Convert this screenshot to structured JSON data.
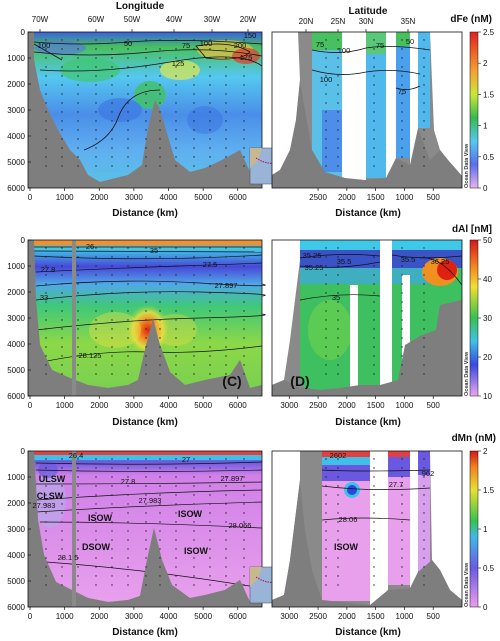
{
  "chart_data": [
    {
      "type": "heatmap",
      "row": "top",
      "colorbar_title": "dFe (nM)",
      "colorbar_ticks": [
        "0",
        "0.5",
        "1",
        "1.5",
        "2",
        "2.5"
      ],
      "colorbar_range": [
        0,
        2.5
      ],
      "left_panel": {
        "x_ticks": [
          "0",
          "1000",
          "2000",
          "3000",
          "4000",
          "5000",
          "6000"
        ],
        "y_ticks": [
          "0",
          "1000",
          "2000",
          "3000",
          "4000",
          "5000",
          "6000"
        ],
        "xlabel": "Distance (km)",
        "top_axis_title": "Longitude",
        "top_ticks": [
          "70W",
          "60W",
          "50W",
          "40W",
          "30W",
          "20W"
        ],
        "contour_labels": [
          "50",
          "75",
          "100",
          "200",
          "175",
          "125",
          "100",
          "150"
        ]
      },
      "right_panel": {
        "x_ticks": [
          "2500",
          "2000",
          "1500",
          "1000",
          "500"
        ],
        "xlabel": "Distance (km)",
        "top_axis_title": "Latitude",
        "top_ticks": [
          "20N",
          "25N",
          "30N",
          "35N"
        ],
        "contour_labels": [
          "75",
          "100",
          "75",
          "50",
          "100",
          "75"
        ]
      },
      "watermark": "Ocean Data View"
    },
    {
      "type": "heatmap",
      "row": "middle",
      "colorbar_title": "dAl [nM]",
      "colorbar_ticks": [
        "10",
        "20",
        "30",
        "40",
        "50"
      ],
      "colorbar_range": [
        10,
        50
      ],
      "left_panel": {
        "x_ticks": [
          "0",
          "1000",
          "2000",
          "3000",
          "4000",
          "5000",
          "6000"
        ],
        "y_ticks": [
          "0",
          "1000",
          "2000",
          "3000",
          "4000",
          "5000",
          "6000"
        ],
        "xlabel": "Distance (km)",
        "panel_letter": "(C)",
        "contour_labels": [
          "26",
          "27.5",
          "27.8",
          "27.897",
          "28.125",
          "35",
          "33"
        ]
      },
      "right_panel": {
        "x_ticks": [
          "3000",
          "2500",
          "2000",
          "1500",
          "1000",
          "500"
        ],
        "xlabel": "Distance (km)",
        "panel_letter": "(D)",
        "contour_labels": [
          "35.25",
          "35.5",
          "35.25",
          "36.25",
          "35",
          "35.5"
        ]
      },
      "watermark": "Ocean Data View"
    },
    {
      "type": "heatmap",
      "row": "bottom",
      "colorbar_title": "dMn (nM)",
      "colorbar_ticks": [
        "0",
        "0.5",
        "1",
        "1.5",
        "2"
      ],
      "colorbar_range": [
        0,
        2
      ],
      "left_panel": {
        "x_ticks": [
          "0",
          "1000",
          "2000",
          "3000",
          "4000",
          "5000",
          "6000"
        ],
        "y_ticks": [
          "0",
          "1000",
          "2000",
          "3000",
          "4000",
          "5000",
          "6000"
        ],
        "xlabel": "Distance (km)",
        "contour_labels": [
          "26.4",
          "27",
          "27.8",
          "27.897",
          "27.983",
          "27.983",
          "28.066",
          "28.1 5"
        ],
        "water_masses": [
          "ULSW",
          "CLSW",
          "ISOW",
          "ISOW",
          "DSOW",
          "ISOW"
        ]
      },
      "right_panel": {
        "x_ticks": [
          "3000",
          "2500",
          "2000",
          "1500",
          "1000",
          "500"
        ],
        "xlabel": "Distance (km)",
        "contour_labels": [
          "2602",
          "27.7",
          "28.06",
          "962"
        ],
        "water_masses": [
          "ISOW"
        ]
      },
      "watermark": "Ocean Data View"
    }
  ]
}
